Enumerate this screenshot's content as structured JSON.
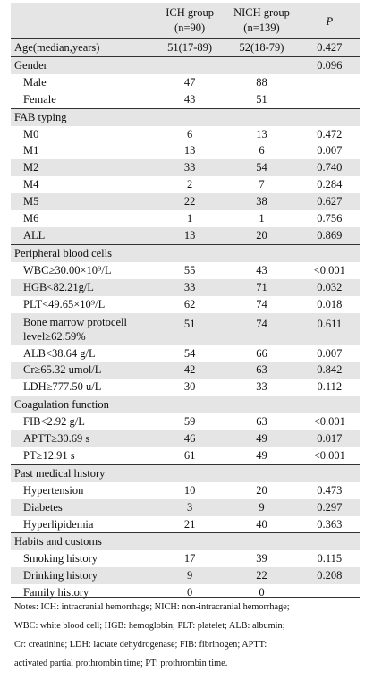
{
  "header": {
    "col_ich": "ICH group",
    "col_ich_n": "(n=90)",
    "col_nich": "NICH group",
    "col_nich_n": "(n=139)",
    "col_p": "P"
  },
  "rows": [
    {
      "label": "Age(median,years)",
      "ich": "51(17-89)",
      "nich": "52(18-79)",
      "p": "0.427",
      "type": "data"
    },
    {
      "label": "Gender",
      "ich": "",
      "nich": "",
      "p": "0.096",
      "type": "section"
    },
    {
      "label": "Male",
      "ich": "47",
      "nich": "88",
      "p": "",
      "type": "item"
    },
    {
      "label": "Female",
      "ich": "43",
      "nich": "51",
      "p": "",
      "type": "item"
    },
    {
      "label": "FAB typing",
      "ich": "",
      "nich": "",
      "p": "",
      "type": "section"
    },
    {
      "label": "M0",
      "ich": "6",
      "nich": "13",
      "p": "0.472",
      "type": "item"
    },
    {
      "label": "M1",
      "ich": "13",
      "nich": "6",
      "p": "0.007",
      "type": "item"
    },
    {
      "label": "M2",
      "ich": "33",
      "nich": "54",
      "p": "0.740",
      "type": "item"
    },
    {
      "label": "M4",
      "ich": "2",
      "nich": "7",
      "p": "0.284",
      "type": "item"
    },
    {
      "label": "M5",
      "ich": "22",
      "nich": "38",
      "p": "0.627",
      "type": "item"
    },
    {
      "label": "M6",
      "ich": "1",
      "nich": "1",
      "p": "0.756",
      "type": "item"
    },
    {
      "label": "ALL",
      "ich": "13",
      "nich": "20",
      "p": "0.869",
      "type": "item"
    },
    {
      "label": "Peripheral blood cells",
      "ich": "",
      "nich": "",
      "p": "",
      "type": "section"
    },
    {
      "label": "WBC≥30.00×10⁹/L",
      "ich": "55",
      "nich": "43",
      "p": "<0.001",
      "type": "item"
    },
    {
      "label": "HGB<82.21g/L",
      "ich": "33",
      "nich": "71",
      "p": "0.032",
      "type": "item"
    },
    {
      "label": "PLT<49.65×10⁹/L",
      "ich": "62",
      "nich": "74",
      "p": "0.018",
      "type": "item"
    },
    {
      "label": "Bone marrow protocell level≥62.59%",
      "ich": "51",
      "nich": "74",
      "p": "0.611",
      "type": "tall"
    },
    {
      "label": "ALB<38.64 g/L",
      "ich": "54",
      "nich": "66",
      "p": "0.007",
      "type": "item"
    },
    {
      "label": "Cr≥65.32 umol/L",
      "ich": "42",
      "nich": "63",
      "p": "0.842",
      "type": "item"
    },
    {
      "label": "LDH≥777.50 u/L",
      "ich": "30",
      "nich": "33",
      "p": "0.112",
      "type": "item"
    },
    {
      "label": "Coagulation function",
      "ich": "",
      "nich": "",
      "p": "",
      "type": "section"
    },
    {
      "label": "FIB<2.92 g/L",
      "ich": "59",
      "nich": "63",
      "p": "<0.001",
      "type": "item"
    },
    {
      "label": "APTT≥30.69 s",
      "ich": "46",
      "nich": "49",
      "p": "0.017",
      "type": "item"
    },
    {
      "label": "PT≥12.91 s",
      "ich": "61",
      "nich": "49",
      "p": "<0.001",
      "type": "item"
    },
    {
      "label": "Past medical history",
      "ich": "",
      "nich": "",
      "p": "",
      "type": "section"
    },
    {
      "label": "Hypertension",
      "ich": "10",
      "nich": "20",
      "p": "0.473",
      "type": "item"
    },
    {
      "label": "Diabetes",
      "ich": "3",
      "nich": "9",
      "p": "0.297",
      "type": "item"
    },
    {
      "label": "Hyperlipidemia",
      "ich": "21",
      "nich": "40",
      "p": "0.363",
      "type": "item"
    },
    {
      "label": "Habits and customs",
      "ich": "",
      "nich": "",
      "p": "",
      "type": "section"
    },
    {
      "label": "Smoking history",
      "ich": "17",
      "nich": "39",
      "p": "0.115",
      "type": "item"
    },
    {
      "label": "Drinking history",
      "ich": "9",
      "nich": "22",
      "p": "0.208",
      "type": "item"
    },
    {
      "label": "Family history",
      "ich": "0",
      "nich": "0",
      "p": "",
      "type": "item"
    }
  ],
  "notes": [
    "Notes: ICH: intracranial hemorrhage; NICH: non-intracranial hemorrhage;",
    "WBC: white blood cell; HGB: hemoglobin; PLT: platelet; ALB: albumin;",
    "Cr: creatinine; LDH: lactate dehydrogenase; FIB: fibrinogen; APTT:",
    "activated partial prothrombin time; PT: prothrombin time."
  ]
}
